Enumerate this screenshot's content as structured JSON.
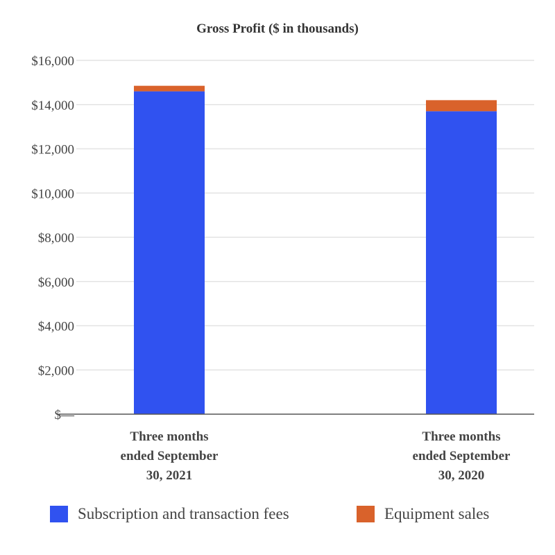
{
  "chart_data": {
    "type": "bar",
    "stacked": true,
    "title": "Gross Profit ($ in thousands)",
    "categories": [
      [
        "Three months",
        "ended September",
        "30, 2021"
      ],
      [
        "Three months",
        "ended September",
        "30, 2020"
      ]
    ],
    "series": [
      {
        "name": "Subscription and transaction fees",
        "color": "#3052F0",
        "values": [
          14600,
          13700
        ]
      },
      {
        "name": "Equipment sales",
        "color": "#D9622B",
        "values": [
          250,
          500
        ]
      }
    ],
    "yticks": [
      "$—",
      "$2,000",
      "$4,000",
      "$6,000",
      "$8,000",
      "$10,000",
      "$12,000",
      "$14,000",
      "$16,000"
    ],
    "ylim": [
      0,
      16000
    ],
    "grid": true,
    "legend_position": "bottom"
  }
}
